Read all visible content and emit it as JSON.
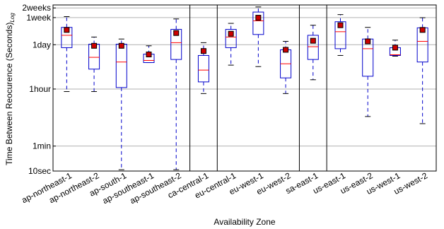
{
  "chart_data": {
    "type": "boxplot",
    "xlabel": "Availability Zone",
    "ylabel": "Time Between Reocurence (Seconds)",
    "ylabel_subscript": "Log",
    "yscale": "log",
    "ylim": [
      10,
      1500000
    ],
    "y_ticks": [
      {
        "value": 10,
        "label": "10sec"
      },
      {
        "value": 60,
        "label": "1min"
      },
      {
        "value": 3600,
        "label": "1hour"
      },
      {
        "value": 86400,
        "label": "1day"
      },
      {
        "value": 604800,
        "label": "1week"
      },
      {
        "value": 1209600,
        "label": "2weeks"
      }
    ],
    "grid": "horizontal",
    "region_separators_after": [
      "ap-southeast-2",
      "ca-central-1",
      "eu-west-2",
      "sa-east-1"
    ],
    "colors": {
      "box": "#0000cc",
      "whisker": "#0000cc",
      "median": "#ff0000",
      "mean_marker_fill": "#cc0000",
      "mean_marker_stroke": "#000000",
      "grid": "#b0b0b0",
      "separator": "#000000"
    },
    "series": [
      {
        "name": "ap-northeast-1",
        "whislo": 3000,
        "q1": 70000,
        "median": 170000,
        "q3": 300000,
        "whishi": 650000,
        "mean": 250000
      },
      {
        "name": "ap-northeast-2",
        "whislo": 3000,
        "q1": 15000,
        "median": 35000,
        "q3": 90000,
        "whishi": 150000,
        "mean": 80000
      },
      {
        "name": "ap-south-1",
        "whislo": 11,
        "q1": 4000,
        "median": 25000,
        "q3": 90000,
        "whishi": 130000,
        "mean": 80000
      },
      {
        "name": "ap-southeast-1",
        "whislo": 24000,
        "q1": 24000,
        "median": 28000,
        "q3": 44000,
        "whishi": 80000,
        "mean": 43000
      },
      {
        "name": "ap-southeast-2",
        "whislo": 11,
        "q1": 30000,
        "median": 100000,
        "q3": 260000,
        "whishi": 550000,
        "mean": 200000
      },
      {
        "name": "ca-central-1",
        "whislo": 2600,
        "q1": 6000,
        "median": 14000,
        "q3": 40000,
        "whishi": 100000,
        "mean": 55000
      },
      {
        "name": "eu-central-1",
        "whislo": 20000,
        "q1": 70000,
        "median": 150000,
        "q3": 260000,
        "whishi": 400000,
        "mean": 190000
      },
      {
        "name": "eu-west-1",
        "whislo": 18000,
        "q1": 180000,
        "median": 480000,
        "q3": 900000,
        "whishi": 1300000,
        "mean": 600000
      },
      {
        "name": "eu-west-2",
        "whislo": 2600,
        "q1": 8000,
        "median": 22000,
        "q3": 60000,
        "whishi": 110000,
        "mean": 60000
      },
      {
        "name": "sa-east-1",
        "whislo": 7000,
        "q1": 30000,
        "median": 75000,
        "q3": 170000,
        "whishi": 350000,
        "mean": 115000
      },
      {
        "name": "us-east-1",
        "whislo": 40000,
        "q1": 65000,
        "median": 220000,
        "q3": 450000,
        "whishi": 750000,
        "mean": 350000
      },
      {
        "name": "us-east-2",
        "whislo": 500,
        "q1": 9000,
        "median": 65000,
        "q3": 130000,
        "whishi": 300000,
        "mean": 110000
      },
      {
        "name": "us-west-1",
        "whislo": 38000,
        "q1": 40000,
        "median": 42000,
        "q3": 70000,
        "whishi": 120000,
        "mean": 70000
      },
      {
        "name": "us-west-2",
        "whislo": 300,
        "q1": 25000,
        "median": 110000,
        "q3": 290000,
        "whishi": 600000,
        "mean": 250000
      }
    ]
  }
}
